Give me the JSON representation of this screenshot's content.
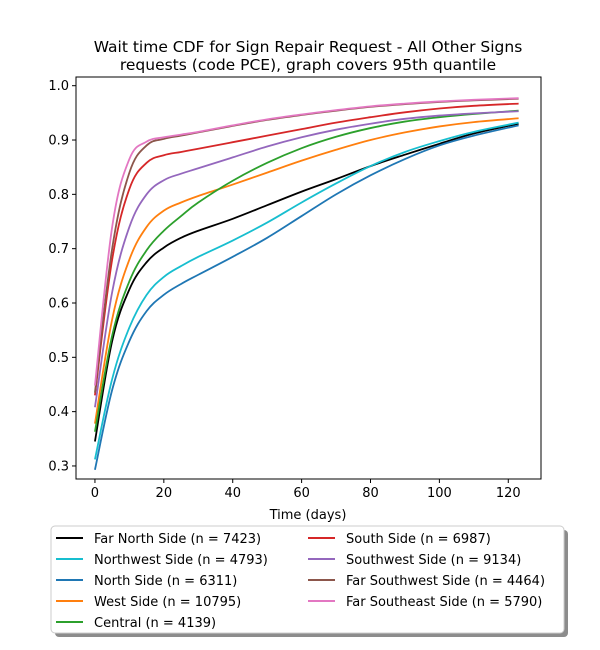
{
  "chart_data": {
    "type": "line",
    "title": [
      "Wait time CDF for Sign Repair Request - All Other Signs",
      "requests (code PCE), graph covers 95th quantile"
    ],
    "xlabel": "Time (days)",
    "ylabel": "",
    "xlim": [
      -5.5,
      129.5
    ],
    "ylim": [
      0.276,
      1.016
    ],
    "xticks": [
      0,
      20,
      40,
      60,
      80,
      100,
      120
    ],
    "yticks": [
      0.3,
      0.4,
      0.5,
      0.6,
      0.7,
      0.8,
      0.9,
      1.0
    ],
    "ytick_labels": [
      "0.3",
      "0.4",
      "0.5",
      "0.6",
      "0.7",
      "0.8",
      "0.9",
      "1.0"
    ],
    "grid": false,
    "legend_position": "below-center",
    "series": [
      {
        "name": "Far North Side (n = 7423)",
        "color": "#000000",
        "x": [
          0,
          5,
          10,
          15,
          20,
          25,
          30,
          40,
          50,
          60,
          70,
          80,
          90,
          100,
          110,
          123
        ],
        "y": [
          0.345,
          0.53,
          0.625,
          0.675,
          0.702,
          0.72,
          0.733,
          0.755,
          0.78,
          0.805,
          0.828,
          0.852,
          0.873,
          0.893,
          0.912,
          0.93
        ]
      },
      {
        "name": "Northwest Side (n = 4793)",
        "color": "#17becf",
        "x": [
          0,
          5,
          10,
          15,
          20,
          25,
          30,
          40,
          50,
          60,
          70,
          80,
          90,
          100,
          110,
          123
        ],
        "y": [
          0.312,
          0.46,
          0.555,
          0.615,
          0.648,
          0.668,
          0.685,
          0.715,
          0.748,
          0.785,
          0.82,
          0.852,
          0.878,
          0.898,
          0.915,
          0.932
        ]
      },
      {
        "name": "North Side (n = 6311)",
        "color": "#1f77b4",
        "x": [
          0,
          5,
          10,
          15,
          20,
          25,
          30,
          40,
          50,
          60,
          70,
          80,
          90,
          100,
          110,
          123
        ],
        "y": [
          0.293,
          0.44,
          0.53,
          0.585,
          0.615,
          0.635,
          0.652,
          0.685,
          0.72,
          0.76,
          0.8,
          0.835,
          0.865,
          0.89,
          0.908,
          0.927
        ]
      },
      {
        "name": "West Side (n = 10795)",
        "color": "#ff7f0e",
        "x": [
          0,
          5,
          10,
          15,
          20,
          25,
          30,
          40,
          50,
          60,
          70,
          80,
          90,
          100,
          110,
          123
        ],
        "y": [
          0.378,
          0.57,
          0.68,
          0.74,
          0.77,
          0.785,
          0.797,
          0.818,
          0.84,
          0.862,
          0.882,
          0.9,
          0.914,
          0.925,
          0.933,
          0.94
        ]
      },
      {
        "name": "Central (n = 4139)",
        "color": "#2ca02c",
        "x": [
          0,
          5,
          10,
          15,
          20,
          25,
          30,
          40,
          50,
          60,
          70,
          80,
          90,
          100,
          110,
          123
        ],
        "y": [
          0.363,
          0.54,
          0.64,
          0.697,
          0.733,
          0.76,
          0.785,
          0.825,
          0.858,
          0.885,
          0.906,
          0.922,
          0.934,
          0.942,
          0.948,
          0.954
        ]
      },
      {
        "name": "South Side (n = 6987)",
        "color": "#d62728",
        "x": [
          0,
          5,
          10,
          15,
          20,
          25,
          30,
          40,
          50,
          60,
          70,
          80,
          90,
          100,
          110,
          123
        ],
        "y": [
          0.43,
          0.68,
          0.81,
          0.858,
          0.872,
          0.878,
          0.884,
          0.896,
          0.908,
          0.92,
          0.932,
          0.942,
          0.951,
          0.958,
          0.963,
          0.967
        ]
      },
      {
        "name": "Southwest Side (n = 9134)",
        "color": "#9467bd",
        "x": [
          0,
          5,
          10,
          15,
          20,
          25,
          30,
          40,
          50,
          60,
          70,
          80,
          90,
          100,
          110,
          123
        ],
        "y": [
          0.408,
          0.62,
          0.74,
          0.8,
          0.826,
          0.838,
          0.848,
          0.868,
          0.888,
          0.905,
          0.919,
          0.93,
          0.939,
          0.945,
          0.949,
          0.953
        ]
      },
      {
        "name": "Far Southwest Side (n = 4464)",
        "color": "#8c564b",
        "x": [
          0,
          5,
          10,
          15,
          20,
          25,
          30,
          40,
          50,
          60,
          70,
          80,
          90,
          100,
          110,
          123
        ],
        "y": [
          0.435,
          0.7,
          0.84,
          0.89,
          0.902,
          0.908,
          0.914,
          0.926,
          0.937,
          0.946,
          0.954,
          0.961,
          0.966,
          0.97,
          0.973,
          0.976
        ]
      },
      {
        "name": "Far Southeast Side (n = 5790)",
        "color": "#e377c2",
        "x": [
          0,
          5,
          10,
          15,
          20,
          25,
          30,
          40,
          50,
          60,
          70,
          80,
          90,
          100,
          110,
          123
        ],
        "y": [
          0.448,
          0.74,
          0.865,
          0.897,
          0.905,
          0.91,
          0.915,
          0.927,
          0.938,
          0.947,
          0.955,
          0.962,
          0.967,
          0.971,
          0.974,
          0.977
        ]
      }
    ]
  }
}
